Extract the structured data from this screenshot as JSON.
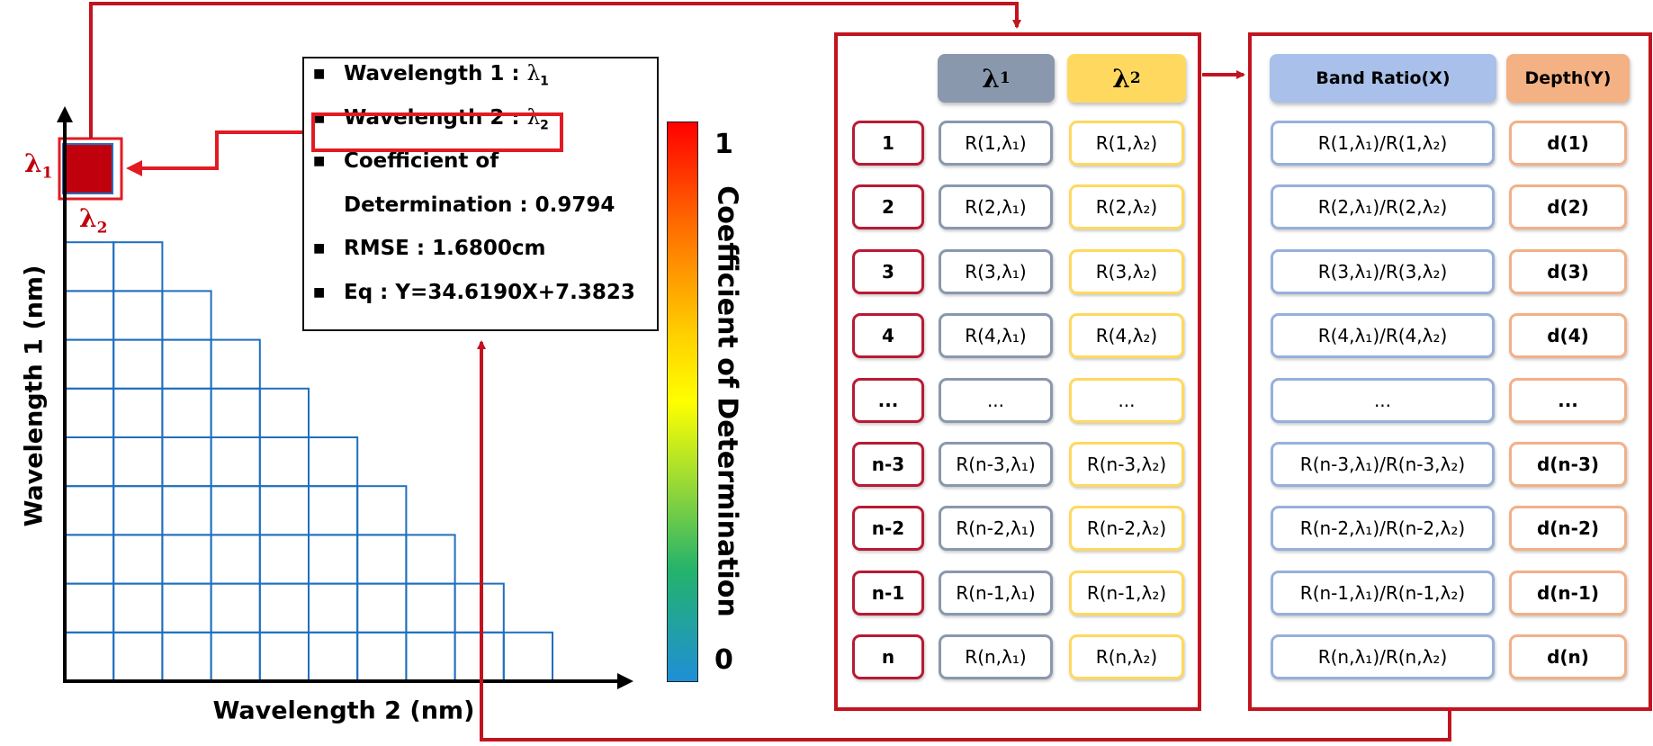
{
  "colors": {
    "accent_red": "#c1141f",
    "highlight_red": "#e21b23",
    "grid_blue": "#1f6fbe",
    "lambda1_header": "#8a98ad",
    "lambda2_header": "#ffd95f",
    "ratio_header": "#a8c0ea",
    "depth_header": "#f4b183"
  },
  "heatmap": {
    "y_axis_label": "Wavelength 1 (nm)",
    "x_axis_label": "Wavelength 2 (nm)",
    "marker_lambda1": "λ",
    "marker_lambda1_sub": "1",
    "marker_lambda2": "λ",
    "marker_lambda2_sub": "2"
  },
  "info_box": {
    "lines": [
      {
        "text": "Wavelength 1 : ",
        "lam": "λ",
        "sub": "1"
      },
      {
        "text": "Wavelength 2 : ",
        "lam": "λ",
        "sub": "2"
      },
      {
        "text": "Coefficient of",
        "lam": "",
        "sub": ""
      },
      {
        "text": "Determination : 0.9794",
        "lam": "",
        "sub": "",
        "no_bullet": true
      },
      {
        "text": "RMSE : 1.6800cm",
        "lam": "",
        "sub": ""
      },
      {
        "text": "Eq : Y=34.6190X+7.3823",
        "lam": "",
        "sub": ""
      }
    ]
  },
  "colorbar": {
    "max_label": "1",
    "min_label": "0",
    "title": "Coefficient of Determination"
  },
  "table_left": {
    "header_lambda1": "λ",
    "header_lambda1_sub": "1",
    "header_lambda2": "λ",
    "header_lambda2_sub": "2",
    "rows": [
      {
        "idx": "1",
        "l1": "R(1,λ₁)",
        "l2": "R(1,λ₂)"
      },
      {
        "idx": "2",
        "l1": "R(2,λ₁)",
        "l2": "R(2,λ₂)"
      },
      {
        "idx": "3",
        "l1": "R(3,λ₁)",
        "l2": "R(3,λ₂)"
      },
      {
        "idx": "4",
        "l1": "R(4,λ₁)",
        "l2": "R(4,λ₂)"
      },
      {
        "idx": "...",
        "l1": "...",
        "l2": "..."
      },
      {
        "idx": "n-3",
        "l1": "R(n-3,λ₁)",
        "l2": "R(n-3,λ₂)"
      },
      {
        "idx": "n-2",
        "l1": "R(n-2,λ₁)",
        "l2": "R(n-2,λ₂)"
      },
      {
        "idx": "n-1",
        "l1": "R(n-1,λ₁)",
        "l2": "R(n-1,λ₂)"
      },
      {
        "idx": "n",
        "l1": "R(n,λ₁)",
        "l2": "R(n,λ₂)"
      }
    ]
  },
  "table_right": {
    "header_ratio": "Band Ratio(X)",
    "header_depth": "Depth(Y)",
    "rows": [
      {
        "ratio": "R(1,λ₁)/R(1,λ₂)",
        "depth": "d(1)"
      },
      {
        "ratio": "R(2,λ₁)/R(2,λ₂)",
        "depth": "d(2)"
      },
      {
        "ratio": "R(3,λ₁)/R(3,λ₂)",
        "depth": "d(3)"
      },
      {
        "ratio": "R(4,λ₁)/R(4,λ₂)",
        "depth": "d(4)"
      },
      {
        "ratio": "...",
        "depth": "..."
      },
      {
        "ratio": "R(n-3,λ₁)/R(n-3,λ₂)",
        "depth": "d(n-3)"
      },
      {
        "ratio": "R(n-2,λ₁)/R(n-2,λ₂)",
        "depth": "d(n-2)"
      },
      {
        "ratio": "R(n-1,λ₁)/R(n-1,λ₂)",
        "depth": "d(n-1)"
      },
      {
        "ratio": "R(n,λ₁)/R(n,λ₂)",
        "depth": "d(n)"
      }
    ]
  }
}
